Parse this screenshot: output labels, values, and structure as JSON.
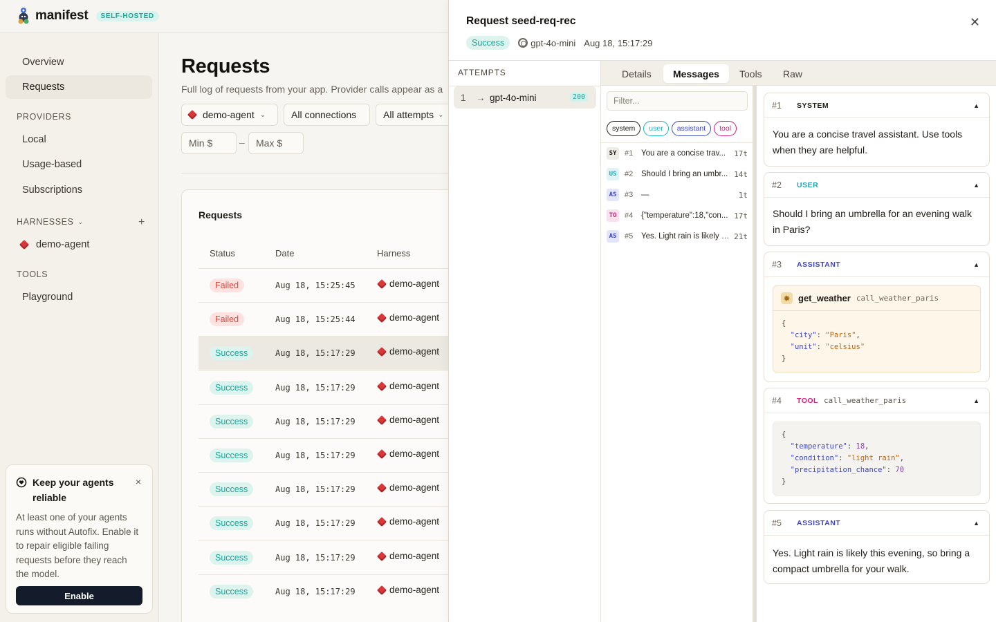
{
  "app": {
    "name": "manifest",
    "badge": "SELF-HOSTED"
  },
  "sidebar": {
    "items": [
      {
        "label": "Overview"
      },
      {
        "label": "Requests",
        "active": true
      }
    ],
    "providers_heading": "PROVIDERS",
    "providers": [
      "Local",
      "Usage-based",
      "Subscriptions"
    ],
    "harnesses_heading": "HARNESSES",
    "harnesses": [
      "demo-agent"
    ],
    "tools_heading": "TOOLS",
    "tools": [
      "Playground"
    ]
  },
  "promo": {
    "title": "Keep your agents reliable",
    "body": "At least one of your agents runs without Autofix. Enable it to repair eligible failing requests before they reach the model.",
    "button": "Enable"
  },
  "main": {
    "title": "Requests",
    "subtitle": "Full log of requests from your app. Provider calls appear as a",
    "filters": {
      "harness": "demo-agent",
      "connections": "All connections",
      "attempts": "All attempts",
      "min_placeholder": "Min $",
      "max_placeholder": "Max $",
      "dash": "–"
    },
    "card_title": "Requests",
    "columns": [
      "Status",
      "Date",
      "Harness"
    ],
    "rows": [
      {
        "status": "Failed",
        "date": "Aug 18, 15:25:45",
        "harness": "demo-agent"
      },
      {
        "status": "Failed",
        "date": "Aug 18, 15:25:44",
        "harness": "demo-agent"
      },
      {
        "status": "Success",
        "date": "Aug 18, 15:17:29",
        "harness": "demo-agent"
      },
      {
        "status": "Success",
        "date": "Aug 18, 15:17:29",
        "harness": "demo-agent"
      },
      {
        "status": "Success",
        "date": "Aug 18, 15:17:29",
        "harness": "demo-agent"
      },
      {
        "status": "Success",
        "date": "Aug 18, 15:17:29",
        "harness": "demo-agent"
      },
      {
        "status": "Success",
        "date": "Aug 18, 15:17:29",
        "harness": "demo-agent"
      },
      {
        "status": "Success",
        "date": "Aug 18, 15:17:29",
        "harness": "demo-agent"
      },
      {
        "status": "Success",
        "date": "Aug 18, 15:17:29",
        "harness": "demo-agent"
      },
      {
        "status": "Success",
        "date": "Aug 18, 15:17:29",
        "harness": "demo-agent"
      }
    ]
  },
  "drawer": {
    "title": "Request seed-req-rec",
    "status": "Success",
    "model": "gpt-4o-mini",
    "timestamp": "Aug 18, 15:17:29",
    "attempts_heading": "ATTEMPTS",
    "attempt": {
      "index": "1",
      "arrow": "→",
      "model": "gpt-4o-mini",
      "code": "200"
    },
    "tabs": [
      "Details",
      "Messages",
      "Tools",
      "Raw"
    ],
    "active_tab": "Messages",
    "filter_placeholder": "Filter...",
    "chips": [
      "system",
      "user",
      "assistant",
      "tool"
    ],
    "list": [
      {
        "tag": "SY",
        "num": "#1",
        "preview": "You are a concise trav...",
        "tokens": "17t"
      },
      {
        "tag": "US",
        "num": "#2",
        "preview": "Should I bring an umbr...",
        "tokens": "14t"
      },
      {
        "tag": "AS",
        "num": "#3",
        "preview": "—",
        "tokens": "1t"
      },
      {
        "tag": "TO",
        "num": "#4",
        "preview": "{\"temperature\":18,\"con...",
        "tokens": "17t"
      },
      {
        "tag": "AS",
        "num": "#5",
        "preview": "Yes. Light rain is likely t...",
        "tokens": "21t"
      }
    ],
    "messages": [
      {
        "num": "#1",
        "role": "SYSTEM",
        "text": "You are a concise travel assistant. Use tools when they are helpful."
      },
      {
        "num": "#2",
        "role": "USER",
        "text": "Should I bring an umbrella for an evening walk in Paris?"
      },
      {
        "num": "#3",
        "role": "ASSISTANT",
        "tool_name": "get_weather",
        "tool_id": "call_weather_paris"
      },
      {
        "num": "#4",
        "role": "TOOL",
        "call_id": "call_weather_paris"
      },
      {
        "num": "#5",
        "role": "ASSISTANT",
        "text": "Yes. Light rain is likely this evening, so bring a compact umbrella for your walk."
      }
    ],
    "tool_args": {
      "open": "{",
      "close": "}",
      "city_key": "\"city\"",
      "city_val": "\"Paris\"",
      "unit_key": "\"unit\"",
      "unit_val": "\"celsius\""
    },
    "tool_result": {
      "open": "{",
      "close": "}",
      "temp_key": "\"temperature\"",
      "temp_val": "18",
      "cond_key": "\"condition\"",
      "cond_val": "\"light rain\"",
      "prec_key": "\"precipitation_chance\"",
      "prec_val": "70"
    }
  }
}
